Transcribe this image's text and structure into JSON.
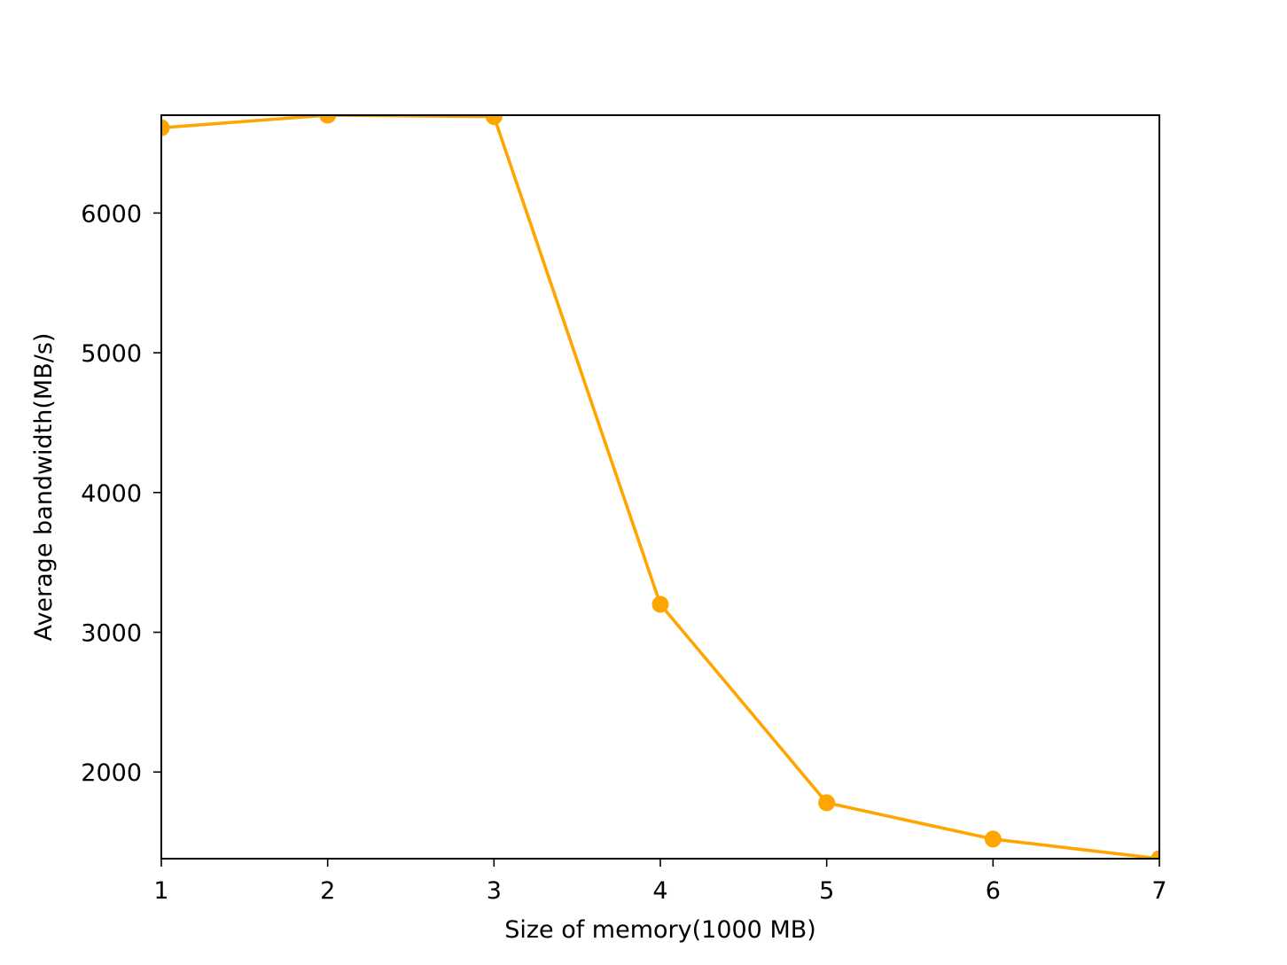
{
  "chart_data": {
    "type": "line",
    "title": "",
    "xlabel": "Size of memory(1000 MB)",
    "ylabel": "Average bandwidth(MB/s)",
    "xlim": [
      1,
      7
    ],
    "ylim": [
      1380,
      6700
    ],
    "x_ticks": [
      1,
      2,
      3,
      4,
      5,
      6,
      7
    ],
    "y_ticks": [
      2000,
      3000,
      4000,
      5000,
      6000
    ],
    "grid": false,
    "series": [
      {
        "x": [
          1,
          2,
          3,
          4,
          5,
          6,
          7
        ],
        "y": [
          6610,
          6700,
          6690,
          3200,
          1780,
          1520,
          1380
        ],
        "color": "#FFA500",
        "marker": "circle"
      }
    ]
  }
}
